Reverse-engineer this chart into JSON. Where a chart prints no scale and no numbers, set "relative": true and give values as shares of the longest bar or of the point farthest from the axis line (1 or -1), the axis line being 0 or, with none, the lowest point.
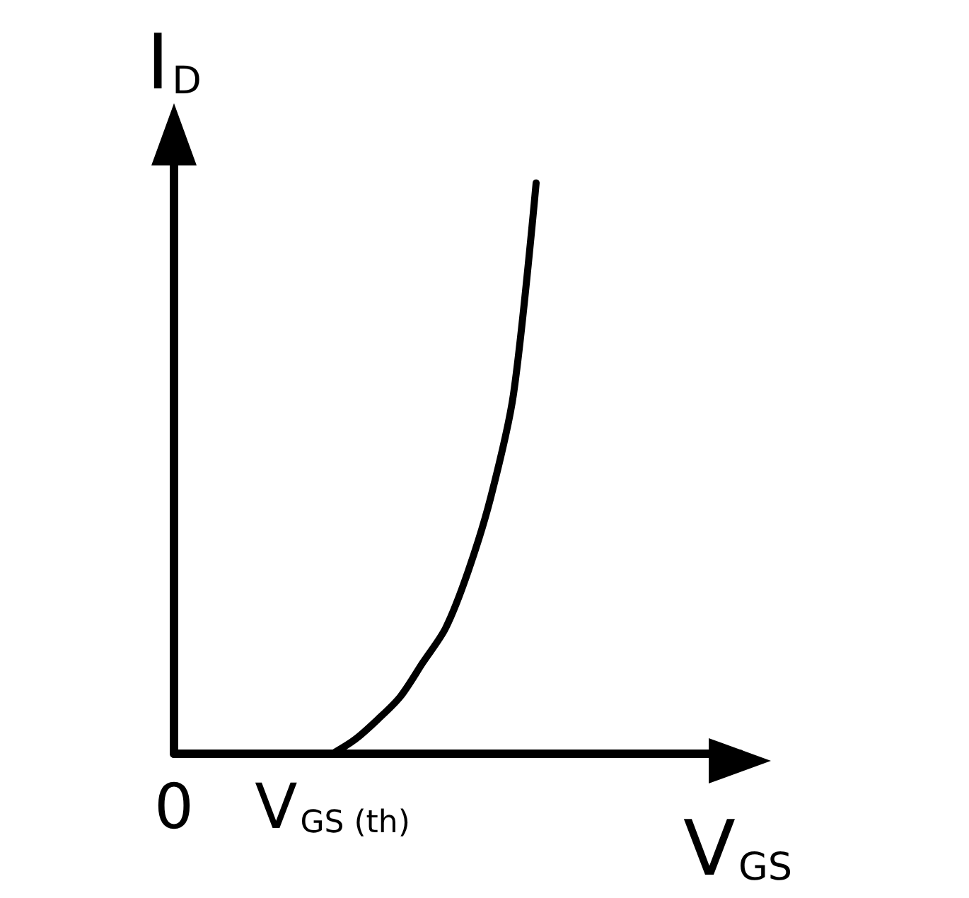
{
  "chart_data": {
    "type": "line",
    "relative": true,
    "xlabel": "V$_{GS}$",
    "ylabel": "I$_{D}$",
    "categories": [
      "0",
      null,
      null,
      null,
      null,
      null,
      null,
      "V$_{GS (th)}$",
      null,
      null,
      null,
      null,
      null,
      null,
      null,
      null,
      null,
      null,
      null,
      null,
      null,
      null,
      null,
      null,
      null,
      null
    ],
    "series": [
      {
        "color": "#000000",
        "values": [
          null,
          null,
          null,
          null,
          null,
          null,
          null,
          0,
          0.025,
          0.06,
          0.1,
          0.16,
          0.22,
          0.32,
          0.45,
          0.63,
          1,
          null,
          null,
          null,
          null,
          null,
          null,
          null,
          null,
          null
        ]
      }
    ],
    "grid": false,
    "marker": "none",
    "line_style": "solid"
  }
}
